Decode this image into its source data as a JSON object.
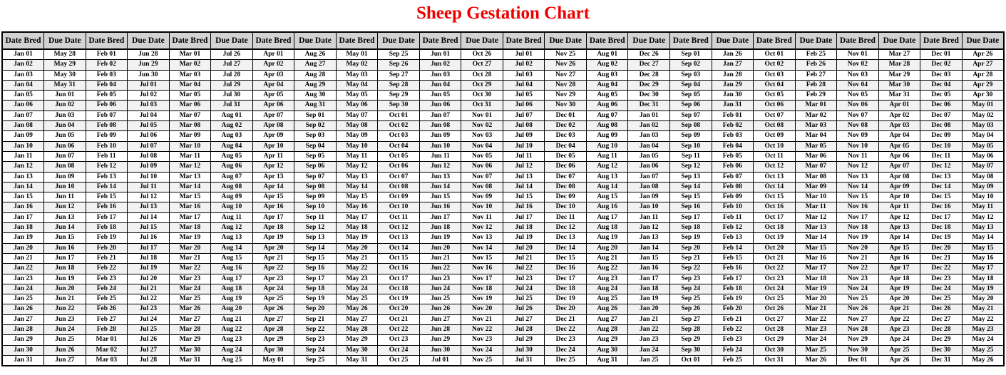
{
  "title": "Sheep Gestation Chart",
  "colors": {
    "title": "#EE0000",
    "header_bg": "#D3D3D3",
    "row_alt_bg": "#F2F2F2",
    "border": "#000000"
  },
  "table": {
    "header_bred": "Date Bred",
    "header_due": "Due Date",
    "row_count": 31,
    "columns": [
      {
        "bred": [
          "Jan 01",
          "Jan 02",
          "Jan 03",
          "Jan 04",
          "Jan 05",
          "Jan 06",
          "Jan 07",
          "Jan 08",
          "Jan 09",
          "Jan 10",
          "Jan 11",
          "Jan 12",
          "Jan 13",
          "Jan 14",
          "Jan 15",
          "Jan 16",
          "Jan 17",
          "Jan 18",
          "Jan 19",
          "Jan 20",
          "Jan 21",
          "Jan 22",
          "Jan 23",
          "Jan 24",
          "Jan 25",
          "Jan 26",
          "Jan 27",
          "Jan 28",
          "Jan 29",
          "Jan 30",
          "Jan 31"
        ],
        "due": [
          "May 28",
          "May 29",
          "May 30",
          "May 31",
          "Jun 01",
          "Jun 02",
          "Jun 03",
          "Jun 04",
          "Jun 05",
          "Jun 06",
          "Jun 07",
          "Jun 08",
          "Jun 09",
          "Jun 10",
          "Jun 11",
          "Jun 12",
          "Jun 13",
          "Jun 14",
          "Jun 15",
          "Jun 16",
          "Jun 17",
          "Jun 18",
          "Jun 19",
          "Jun 20",
          "Jun 21",
          "Jun 22",
          "Jun 23",
          "Jun 24",
          "Jun 25",
          "Jun 26",
          "Jun 27"
        ]
      },
      {
        "bred": [
          "Feb 01",
          "Feb 02",
          "Feb 03",
          "Feb 04",
          "Feb 05",
          "Feb 06",
          "Feb 07",
          "Feb 08",
          "Feb 09",
          "Feb 10",
          "Feb 11",
          "Feb 12",
          "Feb 13",
          "Feb 14",
          "Feb 15",
          "Feb 16",
          "Feb 17",
          "Feb 18",
          "Feb 19",
          "Feb 20",
          "Feb 21",
          "Feb 22",
          "Feb 23",
          "Feb 24",
          "Feb 25",
          "Feb 26",
          "Feb 27",
          "Feb 28",
          "Mar 01",
          "Mar 02",
          "Mar 03"
        ],
        "due": [
          "Jun 28",
          "Jun 29",
          "Jun 30",
          "Jul 01",
          "Jul 02",
          "Jul 03",
          "Jul 04",
          "Jul 05",
          "Jul 06",
          "Jul 07",
          "Jul 08",
          "Jul 09",
          "Jul 10",
          "Jul 11",
          "Jul 12",
          "Jul 13",
          "Jul 14",
          "Jul 15",
          "Jul 16",
          "Jul 17",
          "Jul 18",
          "Jul 19",
          "Jul 20",
          "Jul 21",
          "Jul 22",
          "Jul 23",
          "Jul 24",
          "Jul 25",
          "Jul 26",
          "Jul 27",
          "Jul 28"
        ]
      },
      {
        "bred": [
          "Mar 01",
          "Mar 02",
          "Mar 03",
          "Mar 04",
          "Mar 05",
          "Mar 06",
          "Mar 07",
          "Mar 08",
          "Mar 09",
          "Mar 10",
          "Mar 11",
          "Mar 12",
          "Mar 13",
          "Mar 14",
          "Mar 15",
          "Mar 16",
          "Mar 17",
          "Mar 18",
          "Mar 19",
          "Mar 20",
          "Mar 21",
          "Mar 22",
          "Mar 23",
          "Mar 24",
          "Mar 25",
          "Mar 26",
          "Mar 27",
          "Mar 28",
          "Mar 29",
          "Mar 30",
          "Mar 31"
        ],
        "due": [
          "Jul 26",
          "Jul 27",
          "Jul 28",
          "Jul 29",
          "Jul 30",
          "Jul 31",
          "Aug 01",
          "Aug 02",
          "Aug 03",
          "Aug 04",
          "Aug 05",
          "Aug 06",
          "Aug 07",
          "Aug 08",
          "Aug 09",
          "Aug 10",
          "Aug 11",
          "Aug 12",
          "Aug 13",
          "Aug 14",
          "Aug 15",
          "Aug 16",
          "Aug 17",
          "Aug 18",
          "Aug 19",
          "Aug 20",
          "Aug 21",
          "Aug 22",
          "Aug 23",
          "Aug 24",
          "Aug 25"
        ]
      },
      {
        "bred": [
          "Apr 01",
          "Apr 02",
          "Apr 03",
          "Apr 04",
          "Apr 05",
          "Apr 06",
          "Apr 07",
          "Apr 08",
          "Apr 09",
          "Apr 10",
          "Apr 11",
          "Apr 12",
          "Apr 13",
          "Apr 14",
          "Apr 15",
          "Apr 16",
          "Apr 17",
          "Apr 18",
          "Apr 19",
          "Apr 20",
          "Apr 21",
          "Apr 22",
          "Apr 23",
          "Apr 24",
          "Apr 25",
          "Apr 26",
          "Apr 27",
          "Apr 28",
          "Apr 29",
          "Apr 30",
          "May 01"
        ],
        "due": [
          "Aug 26",
          "Aug 27",
          "Aug 28",
          "Aug 29",
          "Aug 30",
          "Aug 31",
          "Sep 01",
          "Sep 02",
          "Sep 03",
          "Sep 04",
          "Sep 05",
          "Sep 06",
          "Sep 07",
          "Sep 08",
          "Sep 09",
          "Sep 10",
          "Sep 11",
          "Sep 12",
          "Sep 13",
          "Sep 14",
          "Sep 15",
          "Sep 16",
          "Sep 17",
          "Sep 18",
          "Sep 19",
          "Sep 20",
          "Sep 21",
          "Sep 22",
          "Sep 23",
          "Sep 24",
          "Sep 25"
        ]
      },
      {
        "bred": [
          "May 01",
          "May 02",
          "May 03",
          "May 04",
          "May 05",
          "May 06",
          "May 07",
          "May 08",
          "May 09",
          "May 10",
          "May 11",
          "May 12",
          "May 13",
          "May 14",
          "May 15",
          "May 16",
          "May 17",
          "May 18",
          "May 19",
          "May 20",
          "May 21",
          "May 22",
          "May 23",
          "May 24",
          "May 25",
          "May 26",
          "May 27",
          "May 28",
          "May 29",
          "May 30",
          "May 31"
        ],
        "due": [
          "Sep 25",
          "Sep 26",
          "Sep 27",
          "Sep 28",
          "Sep 29",
          "Sep 30",
          "Oct 01",
          "Oct 02",
          "Oct 03",
          "Oct 04",
          "Oct 05",
          "Oct 06",
          "Oct 07",
          "Oct 08",
          "Oct 09",
          "Oct 10",
          "Oct 11",
          "Oct 12",
          "Oct 13",
          "Oct 14",
          "Oct 15",
          "Oct 16",
          "Oct 17",
          "Oct 18",
          "Oct 19",
          "Oct 20",
          "Oct 21",
          "Oct 22",
          "Oct 23",
          "Oct 24",
          "Oct 25"
        ]
      },
      {
        "bred": [
          "Jun 01",
          "Jun 02",
          "Jun 03",
          "Jun 04",
          "Jun 05",
          "Jun 06",
          "Jun 07",
          "Jun 08",
          "Jun 09",
          "Jun 10",
          "Jun 11",
          "Jun 12",
          "Jun 13",
          "Jun 14",
          "Jun 15",
          "Jun 16",
          "Jun 17",
          "Jun 18",
          "Jun 19",
          "Jun 20",
          "Jun 21",
          "Jun 22",
          "Jun 23",
          "Jun 24",
          "Jun 25",
          "Jun 26",
          "Jun 27",
          "Jun 28",
          "Jun 29",
          "Jun 30",
          "Jul 01"
        ],
        "due": [
          "Oct 26",
          "Oct 27",
          "Oct 28",
          "Oct 29",
          "Oct 30",
          "Oct 31",
          "Nov 01",
          "Nov 02",
          "Nov 03",
          "Nov 04",
          "Nov 05",
          "Nov 06",
          "Nov 07",
          "Nov 08",
          "Nov 09",
          "Nov 10",
          "Nov 11",
          "Nov 12",
          "Nov 13",
          "Nov 14",
          "Nov 15",
          "Nov 16",
          "Nov 17",
          "Nov 18",
          "Nov 19",
          "Nov 20",
          "Nov 21",
          "Nov 22",
          "Nov 23",
          "Nov 24",
          "Nov 25"
        ]
      },
      {
        "bred": [
          "Jul 01",
          "Jul 02",
          "Jul 03",
          "Jul 04",
          "Jul 05",
          "Jul 06",
          "Jul 07",
          "Jul 08",
          "Jul 09",
          "Jul 10",
          "Jul 11",
          "Jul 12",
          "Jul 13",
          "Jul 14",
          "Jul 15",
          "Jul 16",
          "Jul 17",
          "Jul 18",
          "Jul 19",
          "Jul 20",
          "Jul 21",
          "Jul 22",
          "Jul 23",
          "Jul 24",
          "Jul 25",
          "Jul 26",
          "Jul 27",
          "Jul 28",
          "Jul 29",
          "Jul 30",
          "Jul 31"
        ],
        "due": [
          "Nov 25",
          "Nov 26",
          "Nov 27",
          "Nov 28",
          "Nov 29",
          "Nov 30",
          "Dec 01",
          "Dec 02",
          "Dec 03",
          "Dec 04",
          "Dec 05",
          "Dec 06",
          "Dec 07",
          "Dec 08",
          "Dec 09",
          "Dec 10",
          "Dec 11",
          "Dec 12",
          "Dec 13",
          "Dec 14",
          "Dec 15",
          "Dec 16",
          "Dec 17",
          "Dec 18",
          "Dec 19",
          "Dec 20",
          "Dec 21",
          "Dec 22",
          "Dec 23",
          "Dec 24",
          "Dec 25"
        ]
      },
      {
        "bred": [
          "Aug 01",
          "Aug 02",
          "Aug 03",
          "Aug 04",
          "Aug 05",
          "Aug 06",
          "Aug 07",
          "Aug 08",
          "Aug 09",
          "Aug 10",
          "Aug 11",
          "Aug 12",
          "Aug 13",
          "Aug 14",
          "Aug 15",
          "Aug 16",
          "Aug 17",
          "Aug 18",
          "Aug 19",
          "Aug 20",
          "Aug 21",
          "Aug 22",
          "Aug 23",
          "Aug 24",
          "Aug 25",
          "Aug 26",
          "Aug 27",
          "Aug 28",
          "Aug 29",
          "Aug 30",
          "Aug 31"
        ],
        "due": [
          "Dec 26",
          "Dec 27",
          "Dec 28",
          "Dec 29",
          "Dec 30",
          "Dec 31",
          "Jan 01",
          "Jan 02",
          "Jan 03",
          "Jan 04",
          "Jan 05",
          "Jan 06",
          "Jan 07",
          "Jan 08",
          "Jan 09",
          "Jan 10",
          "Jan 11",
          "Jan 12",
          "Jan 13",
          "Jan 14",
          "Jan 15",
          "Jan 16",
          "Jan 17",
          "Jan 18",
          "Jan 19",
          "Jan 20",
          "Jan 21",
          "Jan 22",
          "Jan 23",
          "Jan 24",
          "Jan 25"
        ]
      },
      {
        "bred": [
          "Sep 01",
          "Sep 02",
          "Sep 03",
          "Sep 04",
          "Sep 05",
          "Sep 06",
          "Sep 07",
          "Sep 08",
          "Sep 09",
          "Sep 10",
          "Sep 11",
          "Sep 12",
          "Sep 13",
          "Sep 14",
          "Sep 15",
          "Sep 16",
          "Sep 17",
          "Sep 18",
          "Sep 19",
          "Sep 20",
          "Sep 21",
          "Sep 22",
          "Sep 23",
          "Sep 24",
          "Sep 25",
          "Sep 26",
          "Sep 27",
          "Sep 28",
          "Sep 29",
          "Sep 30",
          "Oct 01"
        ],
        "due": [
          "Jan 26",
          "Jan 27",
          "Jan 28",
          "Jan 29",
          "Jan 30",
          "Jan 31",
          "Feb 01",
          "Feb 02",
          "Feb 03",
          "Feb 04",
          "Feb 05",
          "Feb 06",
          "Feb 07",
          "Feb 08",
          "Feb 09",
          "Feb 10",
          "Feb 11",
          "Feb 12",
          "Feb 13",
          "Feb 14",
          "Feb 15",
          "Feb 16",
          "Feb 17",
          "Feb 18",
          "Feb 19",
          "Feb 20",
          "Feb 21",
          "Feb 22",
          "Feb 23",
          "Feb 24",
          "Feb 25"
        ]
      },
      {
        "bred": [
          "Oct 01",
          "Oct 02",
          "Oct 03",
          "Oct 04",
          "Oct 05",
          "Oct 06",
          "Oct 07",
          "Oct 08",
          "Oct 09",
          "Oct 10",
          "Oct 11",
          "Oct 12",
          "Oct 13",
          "Oct 14",
          "Oct 15",
          "Oct 16",
          "Oct 17",
          "Oct 18",
          "Oct 19",
          "Oct 20",
          "Oct 21",
          "Oct 22",
          "Oct 23",
          "Oct 24",
          "Oct 25",
          "Oct 26",
          "Oct 27",
          "Oct 28",
          "Oct 29",
          "Oct 30",
          "Oct 31"
        ],
        "due": [
          "Feb 25",
          "Feb 26",
          "Feb 27",
          "Feb 28",
          "Feb 29",
          "Mar 01",
          "Mar 02",
          "Mar 03",
          "Mar 04",
          "Mar 05",
          "Mar 06",
          "Mar 07",
          "Mar 08",
          "Mar 09",
          "Mar 10",
          "Mar 11",
          "Mar 12",
          "Mar 13",
          "Mar 14",
          "Mar 15",
          "Mar 16",
          "Mar 17",
          "Mar 18",
          "Mar 19",
          "Mar 20",
          "Mar 21",
          "Mar 22",
          "Mar 23",
          "Mar 24",
          "Mar 25",
          "Mar 26"
        ]
      },
      {
        "bred": [
          "Nov 01",
          "Nov 02",
          "Nov 03",
          "Nov 04",
          "Nov 05",
          "Nov 06",
          "Nov 07",
          "Nov 08",
          "Nov 09",
          "Nov 10",
          "Nov 11",
          "Nov 12",
          "Nov 13",
          "Nov 14",
          "Nov 15",
          "Nov 16",
          "Nov 17",
          "Nov 18",
          "Nov 19",
          "Nov 20",
          "Nov 21",
          "Nov 22",
          "Nov 23",
          "Nov 24",
          "Nov 25",
          "Nov 26",
          "Nov 27",
          "Nov 28",
          "Nov 29",
          "Nov 30",
          "Dec 01"
        ],
        "due": [
          "Mar 27",
          "Mar 28",
          "Mar 29",
          "Mar 30",
          "Mar 31",
          "Apr 01",
          "Apr 02",
          "Apr 03",
          "Apr 04",
          "Apr 05",
          "Apr 06",
          "Apr 07",
          "Apr 08",
          "Apr 09",
          "Apr 10",
          "Apr 11",
          "Apr 12",
          "Apr 13",
          "Apr 14",
          "Apr 15",
          "Apr 16",
          "Apr 17",
          "Apr 18",
          "Apr 19",
          "Apr 20",
          "Apr 21",
          "Apr 22",
          "Apr 23",
          "Apr 24",
          "Apr 25",
          "Apr 26"
        ]
      },
      {
        "bred": [
          "Dec 01",
          "Dec 02",
          "Dec 03",
          "Dec 04",
          "Dec 05",
          "Dec 06",
          "Dec 07",
          "Dec 08",
          "Dec 09",
          "Dec 10",
          "Dec 11",
          "Dec 12",
          "Dec 13",
          "Dec 14",
          "Dec 15",
          "Dec 16",
          "Dec 17",
          "Dec 18",
          "Dec 19",
          "Dec 20",
          "Dec 21",
          "Dec 22",
          "Dec 23",
          "Dec 24",
          "Dec 25",
          "Dec 26",
          "Dec 27",
          "Dec 28",
          "Dec 29",
          "Dec 30",
          "Dec 31"
        ],
        "due": [
          "Apr 26",
          "Apr 27",
          "Apr 28",
          "Apr 29",
          "Apr 30",
          "May 01",
          "May 02",
          "May 03",
          "May 04",
          "May 05",
          "May 06",
          "May 07",
          "May 08",
          "May 09",
          "May 10",
          "May 11",
          "May 12",
          "May 13",
          "May 14",
          "May 15",
          "May 16",
          "May 17",
          "May 18",
          "May 19",
          "May 20",
          "May 21",
          "May 22",
          "May 23",
          "May 24",
          "May 25",
          "May 26"
        ]
      }
    ]
  }
}
